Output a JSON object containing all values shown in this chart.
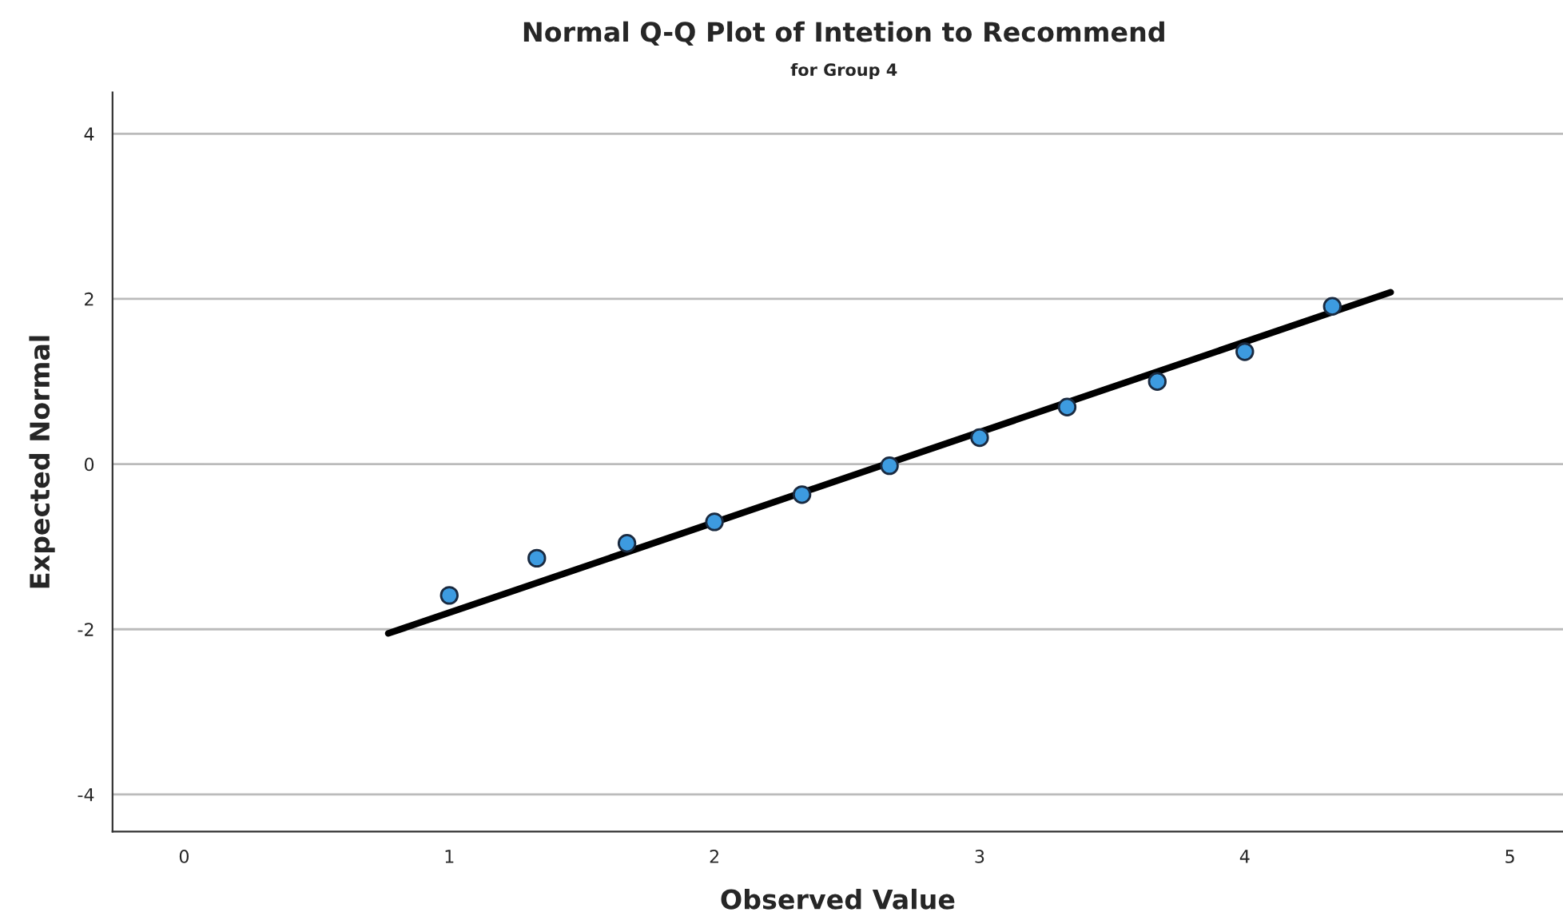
{
  "chart_data": {
    "type": "scatter",
    "title": "Normal Q-Q Plot of Intetion to Recommend",
    "subtitle": "for Group 4",
    "xlabel": "Observed Value",
    "ylabel": "Expected Normal",
    "series": [
      {
        "color": "#3d9be0",
        "marker": "circle",
        "x": [
          1.0,
          1.33,
          1.67,
          2.0,
          2.33,
          2.66,
          3.0,
          3.33,
          3.67,
          4.0,
          4.33
        ],
        "values": [
          -1.59,
          -1.14,
          -0.96,
          -0.7,
          -0.37,
          -0.02,
          0.32,
          0.69,
          1.0,
          1.36,
          1.91
        ]
      },
      {
        "type": "line",
        "color": "#000000",
        "x": [
          0.77,
          4.55
        ],
        "values": [
          -2.05,
          2.08
        ]
      }
    ],
    "xlim": [
      -0.27,
      5.2
    ],
    "ylim": [
      -4.45,
      4.5
    ],
    "xticks": [
      0,
      1,
      2,
      3,
      4,
      5
    ],
    "yticks": [
      -4,
      -2,
      0,
      2,
      4
    ],
    "grid": "y"
  }
}
